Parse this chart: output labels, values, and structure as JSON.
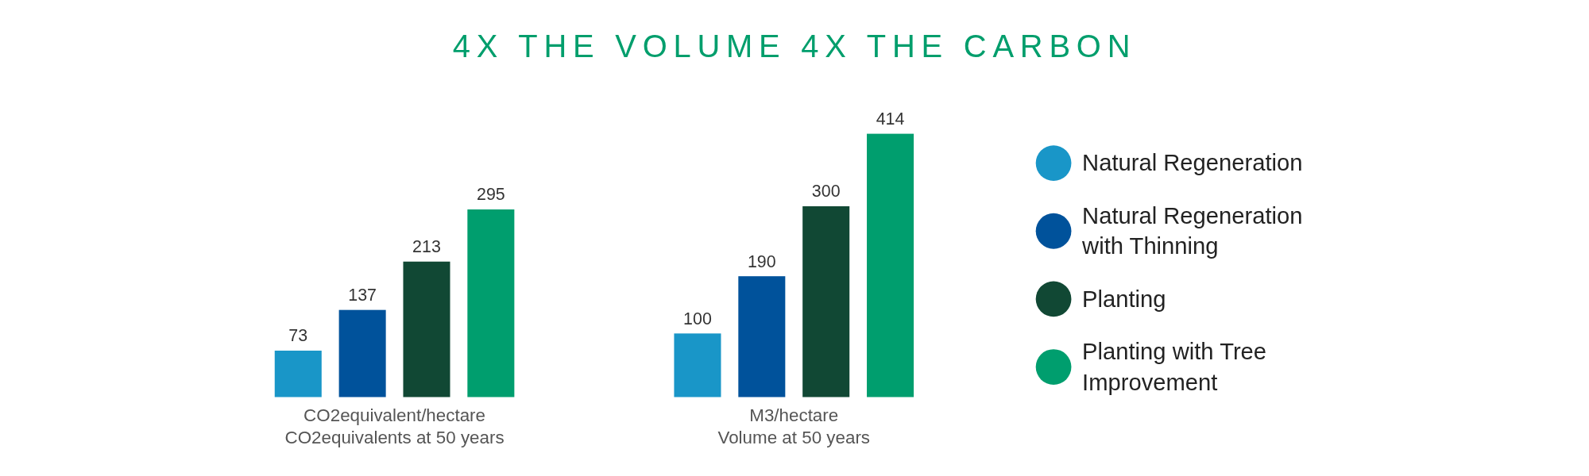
{
  "chart_data": {
    "type": "bar",
    "title": "4X THE VOLUME 4X THE CARBON",
    "categories": [
      "CO2equivalent/hectare\nCO2equivalents at 50 years",
      "M3/hectare\nVolume at 50 years"
    ],
    "series": [
      {
        "name": "Natural Regeneration",
        "color": "#1996c8",
        "values": [
          73,
          100
        ]
      },
      {
        "name": "Natural Regeneration with Thinning",
        "color": "#00529b",
        "values": [
          137,
          190
        ]
      },
      {
        "name": "Planting",
        "color": "#114834",
        "values": [
          213,
          300
        ]
      },
      {
        "name": "Planting with Tree Improvement",
        "color": "#009e6e",
        "values": [
          295,
          414
        ]
      }
    ],
    "data_labels": true,
    "legend": "right"
  }
}
